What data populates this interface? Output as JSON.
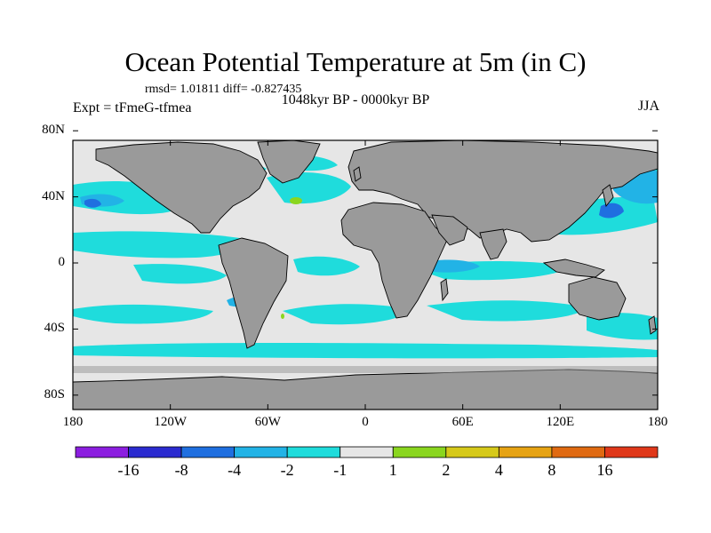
{
  "title": "Ocean Potential Temperature at 5m (in C)",
  "stats": "rmsd= 1.01811 diff= -0.827435",
  "period": "1048kyr BP - 0000kyr BP",
  "experiment": "Expt = tFmeG-tfmea",
  "season": "JJA",
  "y_ticks": [
    {
      "label": "80N",
      "lat": 80
    },
    {
      "label": "40N",
      "lat": 40
    },
    {
      "label": "0",
      "lat": 0
    },
    {
      "label": "40S",
      "lat": -40
    },
    {
      "label": "80S",
      "lat": -80
    }
  ],
  "x_ticks": [
    {
      "label": "180",
      "lon": -180
    },
    {
      "label": "120W",
      "lon": -120
    },
    {
      "label": "60W",
      "lon": -60
    },
    {
      "label": "0",
      "lon": 0
    },
    {
      "label": "60E",
      "lon": 60
    },
    {
      "label": "120E",
      "lon": 120
    },
    {
      "label": "180",
      "lon": 180
    }
  ],
  "colorbar": {
    "colors": [
      "#8c1ee0",
      "#2b2bd0",
      "#1f6fe0",
      "#22b3e6",
      "#1fdcdc",
      "#e6e6e6",
      "#8ad61f",
      "#d6c91a",
      "#e6a314",
      "#e06a12",
      "#e0381a"
    ],
    "labels": [
      "-16",
      "-8",
      "-4",
      "-2",
      "-1",
      "1",
      "2",
      "4",
      "8",
      "16"
    ]
  },
  "colors": {
    "land": "#9a9a9a",
    "ocean_neutral": "#e6e6e6",
    "anomaly_minus1": "#1fdcdc",
    "anomaly_minus2": "#22b3e6",
    "anomaly_minus4": "#1f6fe0",
    "anomaly_plus2": "#8ad61f"
  }
}
